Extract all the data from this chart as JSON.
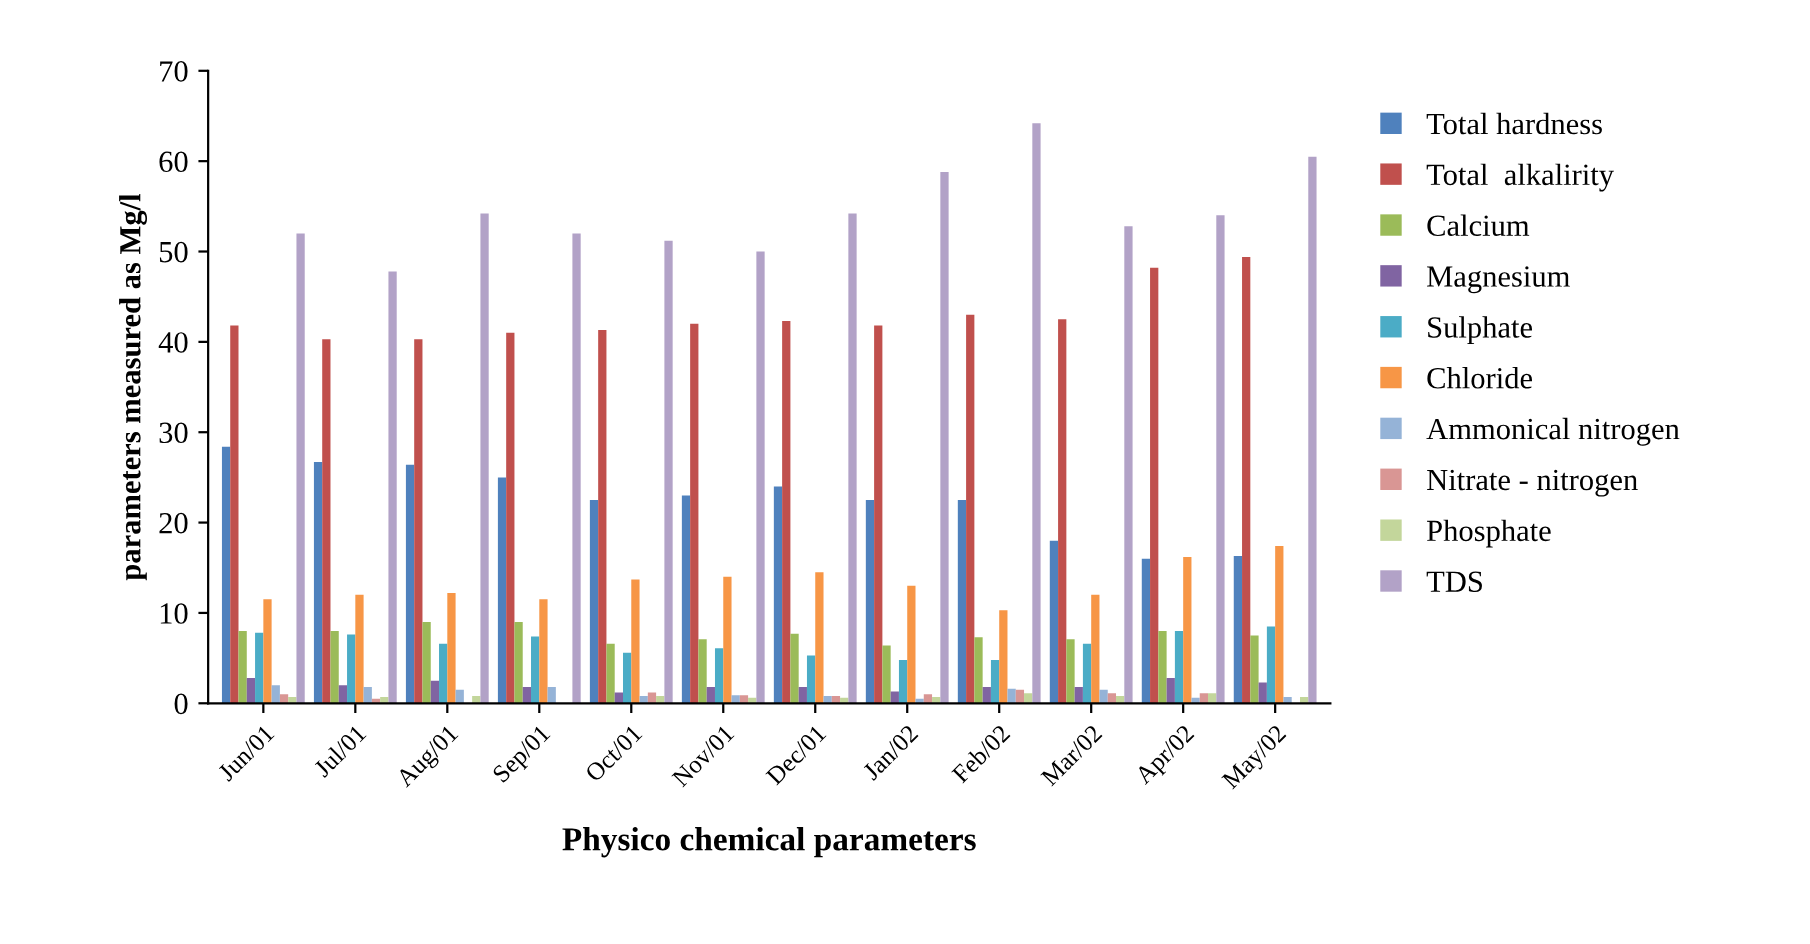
{
  "chart_data": {
    "type": "bar",
    "xlabel": "Physico chemical parameters",
    "ylabel": "parameters measured as Mg/l",
    "categories": [
      "Jun/01",
      "Jul/01",
      "Aug/01",
      "Sep/01",
      "Oct/01",
      "Nov/01",
      "Dec/01",
      "Jan/02",
      "Feb/02",
      "Mar/02",
      "Apr/02",
      "May/02"
    ],
    "series": [
      {
        "name": "Total hardness",
        "color": "#4f81bd",
        "values": [
          28.4,
          26.7,
          26.4,
          25,
          22.5,
          23,
          24,
          22.5,
          22.5,
          18,
          16,
          16.3
        ]
      },
      {
        "name": "Total  alkalirity",
        "color": "#c0504d",
        "values": [
          41.8,
          40.3,
          40.3,
          41,
          41.3,
          42,
          42.3,
          41.8,
          43,
          42.5,
          48.2,
          49.4
        ]
      },
      {
        "name": "Calcium",
        "color": "#9bbb59",
        "values": [
          8,
          8,
          9,
          9,
          6.6,
          7.1,
          7.7,
          6.4,
          7.3,
          7.1,
          8,
          7.5
        ]
      },
      {
        "name": "Magnesium",
        "color": "#8064a2",
        "values": [
          2.8,
          2,
          2.5,
          1.8,
          1.2,
          1.8,
          1.8,
          1.3,
          1.8,
          1.8,
          2.8,
          2.3
        ]
      },
      {
        "name": "Sulphate",
        "color": "#4bacc6",
        "values": [
          7.8,
          7.6,
          6.6,
          7.4,
          5.6,
          6.1,
          5.3,
          4.8,
          4.8,
          6.6,
          8,
          8.5
        ]
      },
      {
        "name": "Chloride",
        "color": "#f79646",
        "values": [
          11.5,
          12,
          12.2,
          11.5,
          13.7,
          14,
          14.5,
          13,
          10.3,
          12,
          16.2,
          17.4
        ]
      },
      {
        "name": "Ammonical nitrogen",
        "color": "#95b3d7",
        "values": [
          2,
          1.8,
          1.5,
          1.8,
          0.8,
          0.9,
          0.8,
          0.5,
          1.6,
          1.5,
          0.6,
          0.7
        ]
      },
      {
        "name": "Nitrate - nitrogen",
        "color": "#d99694",
        "values": [
          1,
          0.5,
          null,
          null,
          1.2,
          0.9,
          0.8,
          1,
          1.5,
          1.1,
          1.1,
          null
        ]
      },
      {
        "name": "Phosphate",
        "color": "#c3d69b",
        "values": [
          0.7,
          0.7,
          0.8,
          null,
          0.8,
          0.6,
          0.6,
          0.7,
          1.1,
          0.8,
          1.1,
          0.7
        ]
      },
      {
        "name": "TDS",
        "color": "#b2a2c7",
        "values": [
          52,
          47.8,
          54.2,
          52,
          51.2,
          50,
          54.2,
          58.8,
          64.2,
          52.8,
          54,
          60.5
        ]
      }
    ],
    "ylim": [
      0,
      70
    ],
    "yticks": [
      0,
      10,
      20,
      30,
      40,
      50,
      60,
      70
    ],
    "grid": false,
    "legend": "right"
  }
}
